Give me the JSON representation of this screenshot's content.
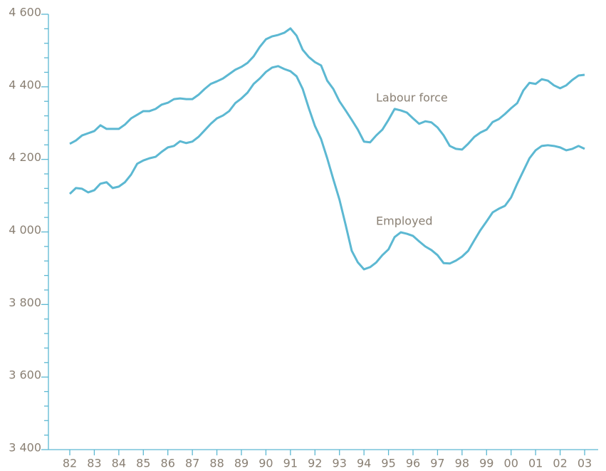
{
  "chart_data": {
    "type": "line",
    "categories": [
      "82",
      null,
      null,
      null,
      "83",
      null,
      null,
      null,
      "84",
      null,
      null,
      null,
      "85",
      null,
      null,
      null,
      "86",
      null,
      null,
      null,
      "87",
      null,
      null,
      null,
      "88",
      null,
      null,
      null,
      "89",
      null,
      null,
      null,
      "90",
      null,
      null,
      null,
      "91",
      null,
      null,
      null,
      "92",
      null,
      null,
      null,
      "93",
      null,
      null,
      null,
      "94",
      null,
      null,
      null,
      "95",
      null,
      null,
      null,
      "96",
      null,
      null,
      null,
      "97",
      null,
      null,
      null,
      "98",
      null,
      null,
      null,
      "99",
      null,
      null,
      null,
      "00",
      null,
      null,
      null,
      "01",
      null,
      null,
      null,
      "02",
      null,
      null,
      null,
      "03"
    ],
    "series": [
      {
        "name": "Labour force",
        "color": "#5cb8d2",
        "values": [
          4243,
          4252,
          4266,
          4272,
          4278,
          4294,
          4284,
          4284,
          4284,
          4296,
          4313,
          4323,
          4333,
          4333,
          4339,
          4351,
          4356,
          4366,
          4368,
          4366,
          4366,
          4378,
          4394,
          4408,
          4415,
          4423,
          4435,
          4447,
          4455,
          4466,
          4484,
          4510,
          4531,
          4539,
          4543,
          4549,
          4561,
          4541,
          4502,
          4482,
          4468,
          4459,
          4417,
          4394,
          4360,
          4335,
          4309,
          4282,
          4249,
          4247,
          4266,
          4282,
          4309,
          4339,
          4335,
          4329,
          4313,
          4298,
          4305,
          4302,
          4288,
          4266,
          4237,
          4229,
          4227,
          4243,
          4262,
          4274,
          4282,
          4303,
          4311,
          4325,
          4341,
          4355,
          4390,
          4411,
          4408,
          4421,
          4417,
          4404,
          4396,
          4404,
          4419,
          4431,
          4433
        ]
      },
      {
        "name": "Employed",
        "color": "#5cb8d2",
        "values": [
          4105,
          4121,
          4119,
          4109,
          4115,
          4133,
          4137,
          4121,
          4125,
          4137,
          4158,
          4188,
          4197,
          4203,
          4207,
          4221,
          4233,
          4237,
          4250,
          4245,
          4249,
          4262,
          4280,
          4298,
          4313,
          4321,
          4333,
          4355,
          4368,
          4384,
          4408,
          4423,
          4441,
          4453,
          4457,
          4449,
          4443,
          4429,
          4394,
          4341,
          4292,
          4256,
          4203,
          4145,
          4089,
          4020,
          3948,
          3916,
          3897,
          3903,
          3916,
          3936,
          3952,
          3986,
          3999,
          3995,
          3989,
          3974,
          3960,
          3950,
          3936,
          3914,
          3913,
          3921,
          3932,
          3948,
          3977,
          4005,
          4029,
          4054,
          4064,
          4072,
          4095,
          4133,
          4168,
          4203,
          4225,
          4237,
          4239,
          4237,
          4233,
          4225,
          4229,
          4237,
          4229
        ]
      }
    ],
    "ylim": [
      3400,
      4600
    ],
    "yticks": [
      {
        "value": 3400,
        "label": "3 400"
      },
      {
        "value": 3600,
        "label": "3 600"
      },
      {
        "value": 3800,
        "label": "3 800"
      },
      {
        "value": 4000,
        "label": "4 000"
      },
      {
        "value": 4200,
        "label": "4 200"
      },
      {
        "value": 4400,
        "label": "4 400"
      },
      {
        "value": 4600,
        "label": "4 600"
      }
    ],
    "yticks_minor": [
      3440,
      3480,
      3520,
      3560,
      3640,
      3680,
      3720,
      3760,
      3840,
      3880,
      3920,
      3960,
      4040,
      4080,
      4120,
      4160,
      4240,
      4280,
      4320,
      4360,
      4440,
      4480,
      4520,
      4560
    ],
    "grid": false
  }
}
